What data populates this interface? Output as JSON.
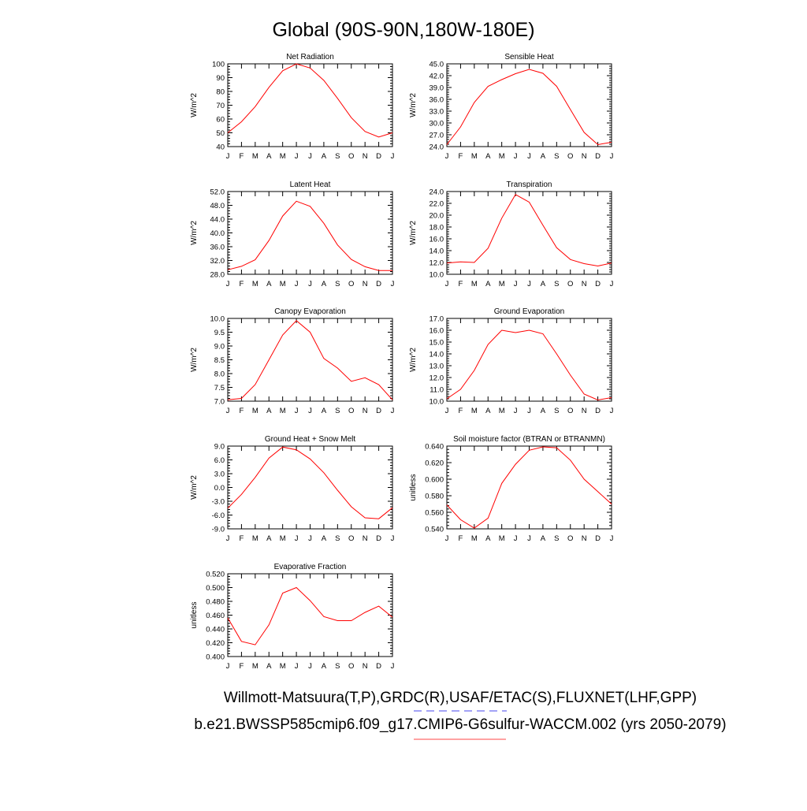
{
  "page": {
    "title": "Global (90S-90N,180W-180E)",
    "footer_line1": "Willmott-Matsuura(T,P),GRDC(R),USAF/ETAC(S),FLUXNET(LHF,GPP)",
    "footer_line2": "b.e21.BWSSP585cmip6.f09_g17.CMIP6-G6sulfur-WACCM.002 (yrs 2050-2079)"
  },
  "colors": {
    "series": "#ff0000",
    "footer_underline1": "#6a6af0",
    "footer_underline2": "#ff6a6a"
  },
  "chart_data": [
    {
      "type": "line",
      "title": "Net Radiation",
      "ylabel": "W/m^2",
      "x": [
        "J",
        "F",
        "M",
        "A",
        "M",
        "J",
        "J",
        "A",
        "S",
        "O",
        "N",
        "D",
        "J"
      ],
      "ylim": [
        40,
        100
      ],
      "yticks": [
        "40",
        "50",
        "60",
        "70",
        "80",
        "90",
        "100"
      ],
      "series": [
        {
          "values": [
            50,
            58,
            69,
            83,
            95,
            100,
            97,
            88,
            75,
            61,
            51,
            47,
            50
          ]
        }
      ]
    },
    {
      "type": "line",
      "title": "Sensible Heat",
      "ylabel": "W/m^2",
      "x": [
        "J",
        "F",
        "M",
        "A",
        "M",
        "J",
        "J",
        "A",
        "S",
        "O",
        "N",
        "D",
        "J"
      ],
      "ylim": [
        24,
        45
      ],
      "yticks": [
        "24.0",
        "27.0",
        "30.0",
        "33.0",
        "36.0",
        "39.0",
        "42.0",
        "45.0"
      ],
      "series": [
        {
          "values": [
            24.5,
            29,
            35.2,
            39.3,
            41,
            42.5,
            43.6,
            42.6,
            39.3,
            33.4,
            27.6,
            24.5,
            25.1
          ]
        }
      ]
    },
    {
      "type": "line",
      "title": "Latent Heat",
      "ylabel": "W/m^2",
      "x": [
        "J",
        "F",
        "M",
        "A",
        "M",
        "J",
        "J",
        "A",
        "S",
        "O",
        "N",
        "D",
        "J"
      ],
      "ylim": [
        28,
        52
      ],
      "yticks": [
        "28.0",
        "32.0",
        "36.0",
        "40.0",
        "44.0",
        "48.0",
        "52.0"
      ],
      "series": [
        {
          "values": [
            29.3,
            30.3,
            32.2,
            37.8,
            44.9,
            49.2,
            47.7,
            42.8,
            36.5,
            32.3,
            30.2,
            29.1,
            29.1
          ]
        }
      ]
    },
    {
      "type": "line",
      "title": "Transpiration",
      "ylabel": "W/m^2",
      "x": [
        "J",
        "F",
        "M",
        "A",
        "M",
        "J",
        "J",
        "A",
        "S",
        "O",
        "N",
        "D",
        "J"
      ],
      "ylim": [
        10,
        24
      ],
      "yticks": [
        "10.0",
        "12.0",
        "14.0",
        "16.0",
        "18.0",
        "20.0",
        "22.0",
        "24.0"
      ],
      "series": [
        {
          "values": [
            11.9,
            12.1,
            12,
            14.4,
            19.5,
            23.5,
            22.2,
            18.3,
            14.5,
            12.5,
            11.8,
            11.4,
            11.9
          ]
        }
      ]
    },
    {
      "type": "line",
      "title": "Canopy Evaporation",
      "ylabel": "W/m^2",
      "x": [
        "J",
        "F",
        "M",
        "A",
        "M",
        "J",
        "J",
        "A",
        "S",
        "O",
        "N",
        "D",
        "J"
      ],
      "ylim": [
        7,
        10
      ],
      "yticks": [
        "7.0",
        "7.5",
        "8.0",
        "8.5",
        "9.0",
        "9.5",
        "10.0"
      ],
      "series": [
        {
          "values": [
            7.05,
            7.1,
            7.6,
            8.5,
            9.4,
            9.92,
            9.5,
            8.55,
            8.2,
            7.72,
            7.85,
            7.6,
            7.05
          ]
        }
      ]
    },
    {
      "type": "line",
      "title": "Ground Evaporation",
      "ylabel": "W/m^2",
      "x": [
        "J",
        "F",
        "M",
        "A",
        "M",
        "J",
        "J",
        "A",
        "S",
        "O",
        "N",
        "D",
        "J"
      ],
      "ylim": [
        10,
        17
      ],
      "yticks": [
        "10.0",
        "11.0",
        "12.0",
        "13.0",
        "14.0",
        "15.0",
        "16.0",
        "17.0"
      ],
      "series": [
        {
          "values": [
            10.2,
            11,
            12.6,
            14.8,
            16,
            15.8,
            16,
            15.7,
            14,
            12.2,
            10.6,
            10.1,
            10.3
          ]
        }
      ]
    },
    {
      "type": "line",
      "title": "Ground Heat + Snow Melt",
      "ylabel": "W/m^2",
      "x": [
        "J",
        "F",
        "M",
        "A",
        "M",
        "J",
        "J",
        "A",
        "S",
        "O",
        "N",
        "D",
        "J"
      ],
      "ylim": [
        -9,
        9
      ],
      "yticks": [
        "-9.0",
        "-6.0",
        "-3.0",
        "0.0",
        "3.0",
        "6.0",
        "9.0"
      ],
      "series": [
        {
          "values": [
            -4.5,
            -1.5,
            2.2,
            6.4,
            8.8,
            8.2,
            6.2,
            3.2,
            -0.6,
            -4.2,
            -6.6,
            -6.8,
            -4.4
          ]
        }
      ]
    },
    {
      "type": "line",
      "title": "Soil moisture factor (BTRAN or BTRANMN)",
      "ylabel": "unitless",
      "x": [
        "J",
        "F",
        "M",
        "A",
        "M",
        "J",
        "J",
        "A",
        "S",
        "O",
        "N",
        "D",
        "J"
      ],
      "ylim": [
        0.54,
        0.64
      ],
      "yticks": [
        "0.540",
        "0.560",
        "0.580",
        "0.600",
        "0.620",
        "0.640"
      ],
      "series": [
        {
          "values": [
            0.569,
            0.551,
            0.541,
            0.553,
            0.595,
            0.618,
            0.635,
            0.639,
            0.638,
            0.623,
            0.6,
            0.585,
            0.57
          ]
        }
      ]
    },
    {
      "type": "line",
      "title": "Evaporative Fraction",
      "ylabel": "unitless",
      "x": [
        "J",
        "F",
        "M",
        "A",
        "M",
        "J",
        "J",
        "A",
        "S",
        "O",
        "N",
        "D",
        "J"
      ],
      "ylim": [
        0.4,
        0.52
      ],
      "yticks": [
        "0.400",
        "0.420",
        "0.440",
        "0.460",
        "0.480",
        "0.500",
        "0.520"
      ],
      "series": [
        {
          "values": [
            0.456,
            0.422,
            0.417,
            0.446,
            0.492,
            0.5,
            0.481,
            0.458,
            0.452,
            0.452,
            0.464,
            0.473,
            0.457
          ]
        }
      ]
    }
  ]
}
